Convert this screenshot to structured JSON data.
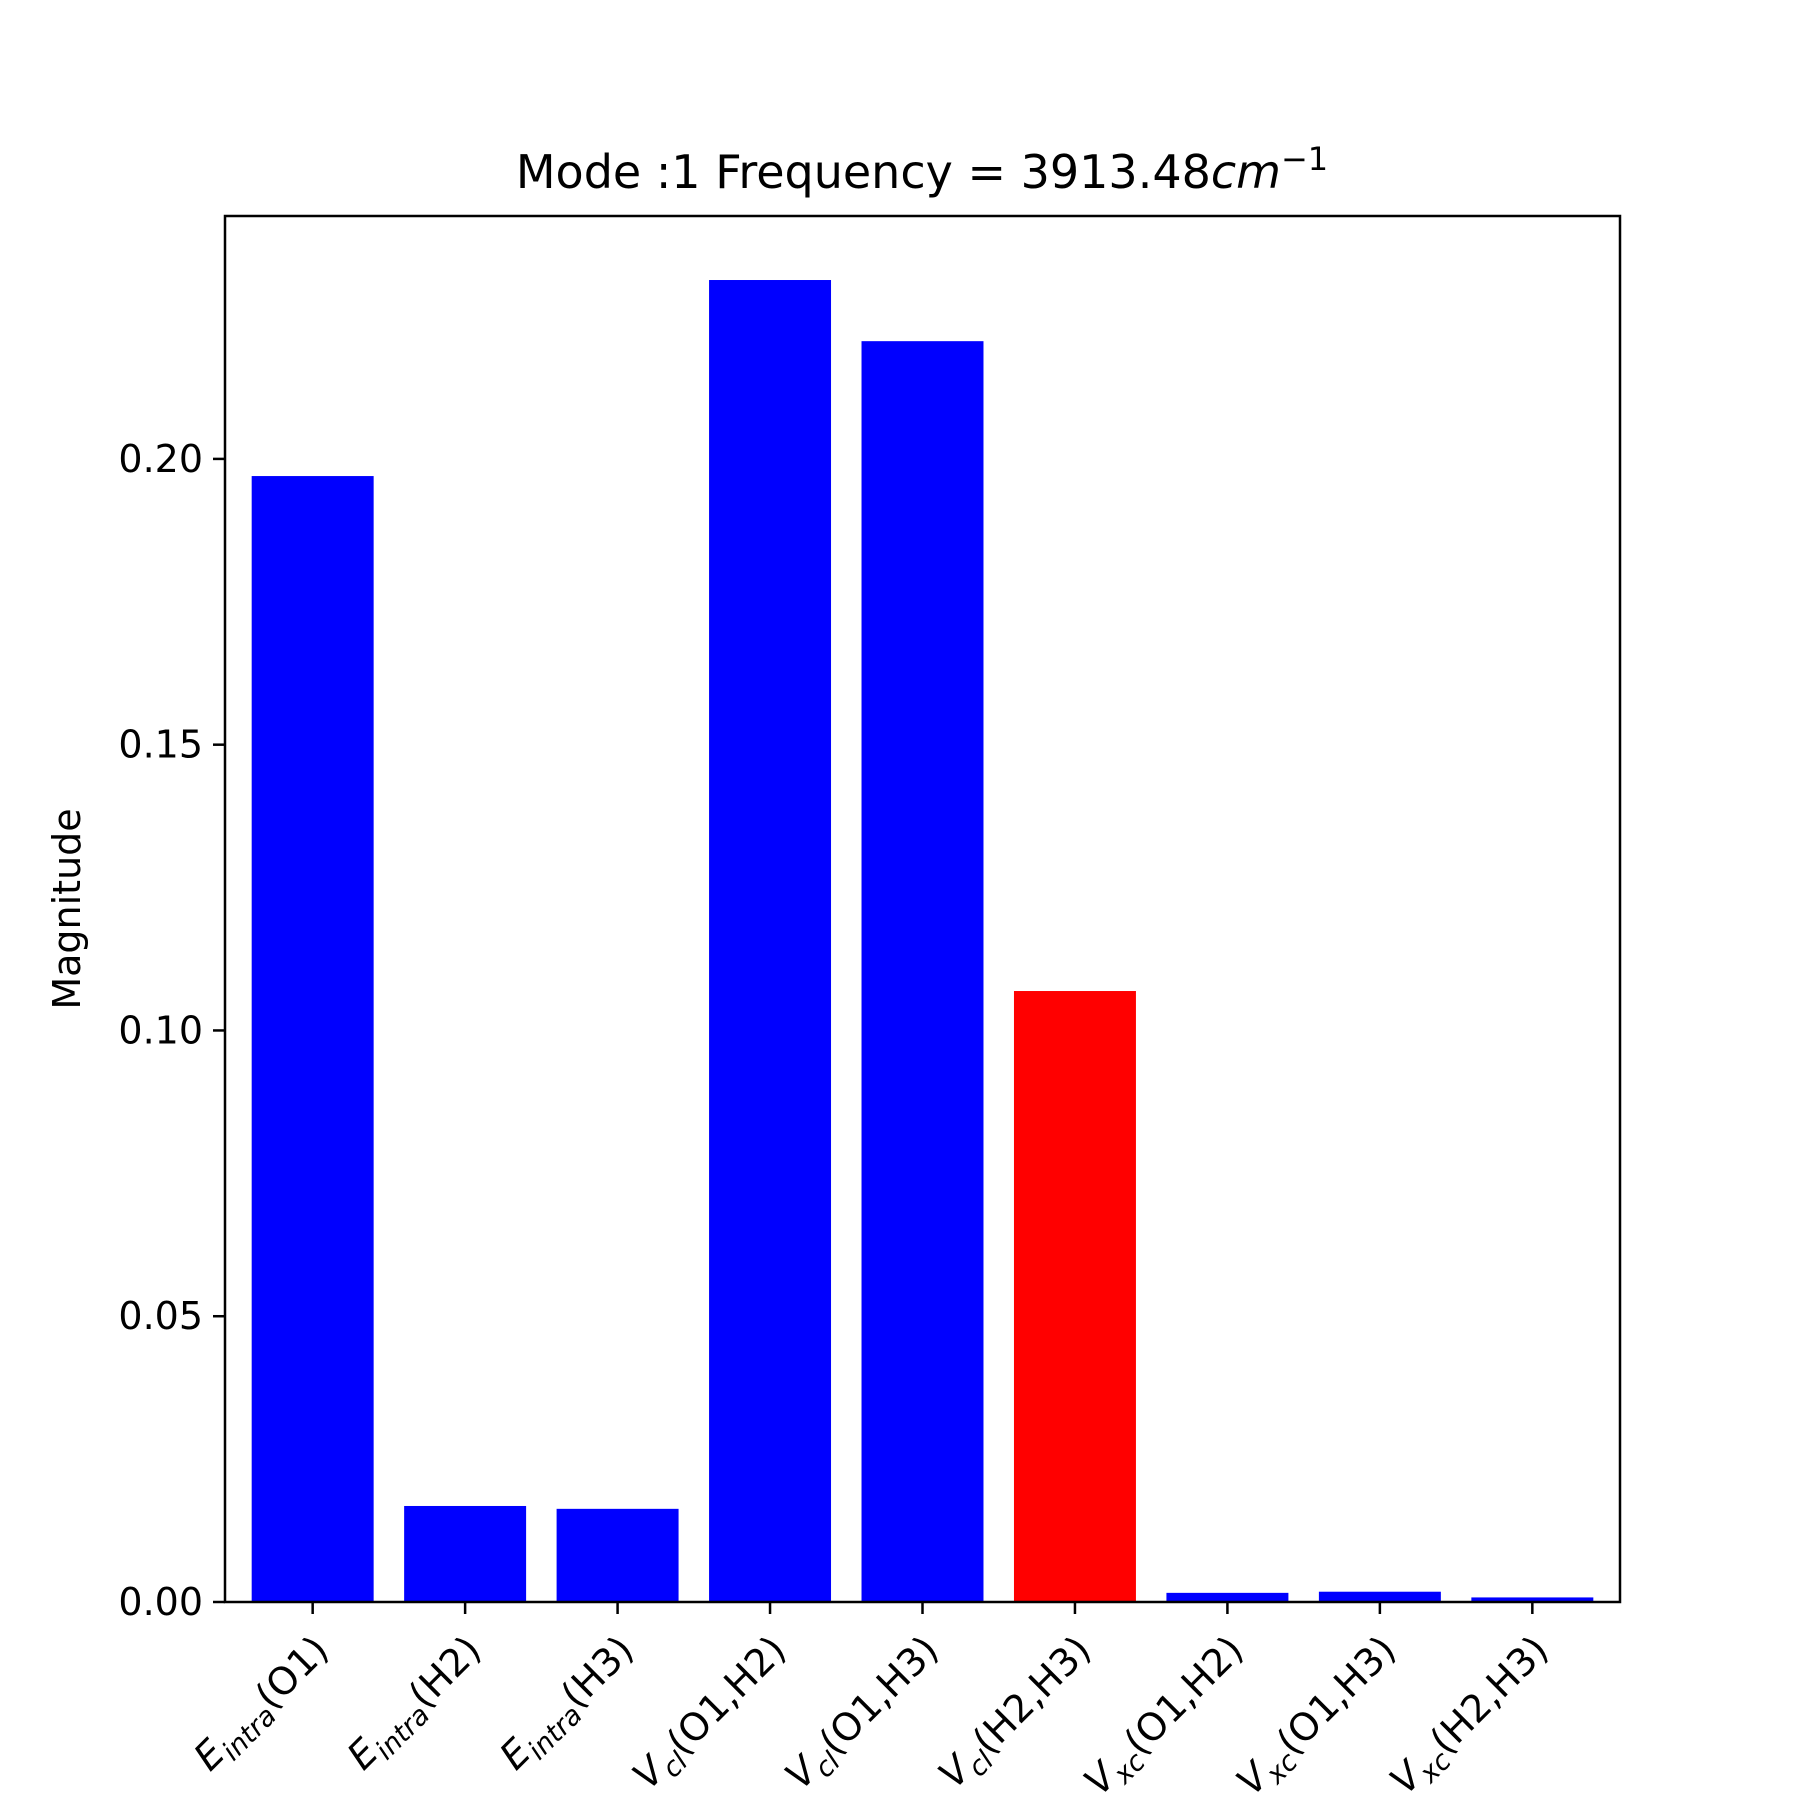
{
  "chart_data": {
    "type": "bar",
    "title": {
      "prefix": "Mode :1   Frequency = 3913.48",
      "unit": "cm",
      "unit_exponent": "−1"
    },
    "xlabel": "",
    "ylabel": "Magnitude",
    "ylim": [
      0,
      0.2425
    ],
    "yticks": [
      {
        "value": 0.0,
        "label": "0.00"
      },
      {
        "value": 0.05,
        "label": "0.05"
      },
      {
        "value": 0.1,
        "label": "0.10"
      },
      {
        "value": 0.15,
        "label": "0.15"
      },
      {
        "value": 0.2,
        "label": "0.20"
      }
    ],
    "categories": [
      {
        "symbol": "E",
        "sub": "intra",
        "args": "(O1)"
      },
      {
        "symbol": "E",
        "sub": "intra",
        "args": "(H2)"
      },
      {
        "symbol": "E",
        "sub": "intra",
        "args": "(H3)"
      },
      {
        "symbol": "V",
        "sub": "cl",
        "args": "(O1,H2)"
      },
      {
        "symbol": "V",
        "sub": "cl",
        "args": "(O1,H3)"
      },
      {
        "symbol": "V",
        "sub": "cl",
        "args": "(H2,H3)"
      },
      {
        "symbol": "V",
        "sub": "xc",
        "args": "(O1,H2)"
      },
      {
        "symbol": "V",
        "sub": "xc",
        "args": "(O1,H3)"
      },
      {
        "symbol": "V",
        "sub": "xc",
        "args": "(H2,H3)"
      }
    ],
    "values": [
      0.197,
      0.0168,
      0.0163,
      0.2313,
      0.2206,
      0.1069,
      0.0016,
      0.0018,
      0.0008
    ],
    "colors": [
      "#0000ff",
      "#0000ff",
      "#0000ff",
      "#0000ff",
      "#0000ff",
      "#ff0000",
      "#0000ff",
      "#0000ff",
      "#0000ff"
    ],
    "grid": false,
    "legend": "none"
  }
}
